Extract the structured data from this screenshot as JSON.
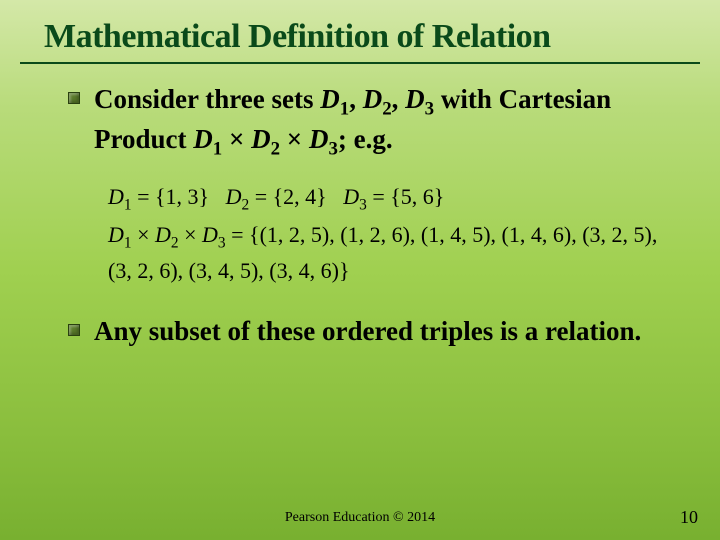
{
  "slide": {
    "title": "Mathematical Definition of Relation",
    "background_gradient": [
      "#d4e8a8",
      "#b8db7a",
      "#a0d050",
      "#8abe3d",
      "#78b030"
    ],
    "title_color": "#0a4a1a",
    "title_fontsize": 34,
    "bullet_color": "#5a7a2a",
    "bullets": [
      {
        "text_html": "Consider three sets <span class='ital'>D</span><sub>1</sub>, <span class='ital'>D</span><sub>2</sub>, <span class='ital'>D</span><sub>3</sub> with Cartesian Product <span class='ital'>D</span><sub>1</sub> × <span class='ital'>D</span><sub>2</sub> × <span class='ital'>D</span><sub>3</sub>; e.g.",
        "fontsize": 27
      },
      {
        "text_html": "Any subset of these ordered triples is a relation.",
        "fontsize": 27
      }
    ],
    "subpoint": {
      "lines": [
        "<span class='ital'>D</span><sub>1</sub> = {1, 3}&nbsp;&nbsp;&nbsp;<span class='ital'>D</span><sub>2</sub> = {2, 4}&nbsp;&nbsp;&nbsp;<span class='ital'>D</span><sub>3</sub> = {5, 6}",
        "<span class='ital'>D</span><sub>1</sub> <span class='times'>×</span> <span class='ital'>D</span><sub>2</sub> <span class='times'>×</span> <span class='ital'>D</span><sub>3</sub> = {(1, 2, 5), (1, 2, 6), (1, 4, 5), (1, 4, 6), (3, 2, 5), (3, 2, 6), (3, 4, 5), (3, 4, 6)}"
      ],
      "fontsize": 22
    },
    "footer": "Pearson Education © 2014",
    "page_number": "10"
  }
}
